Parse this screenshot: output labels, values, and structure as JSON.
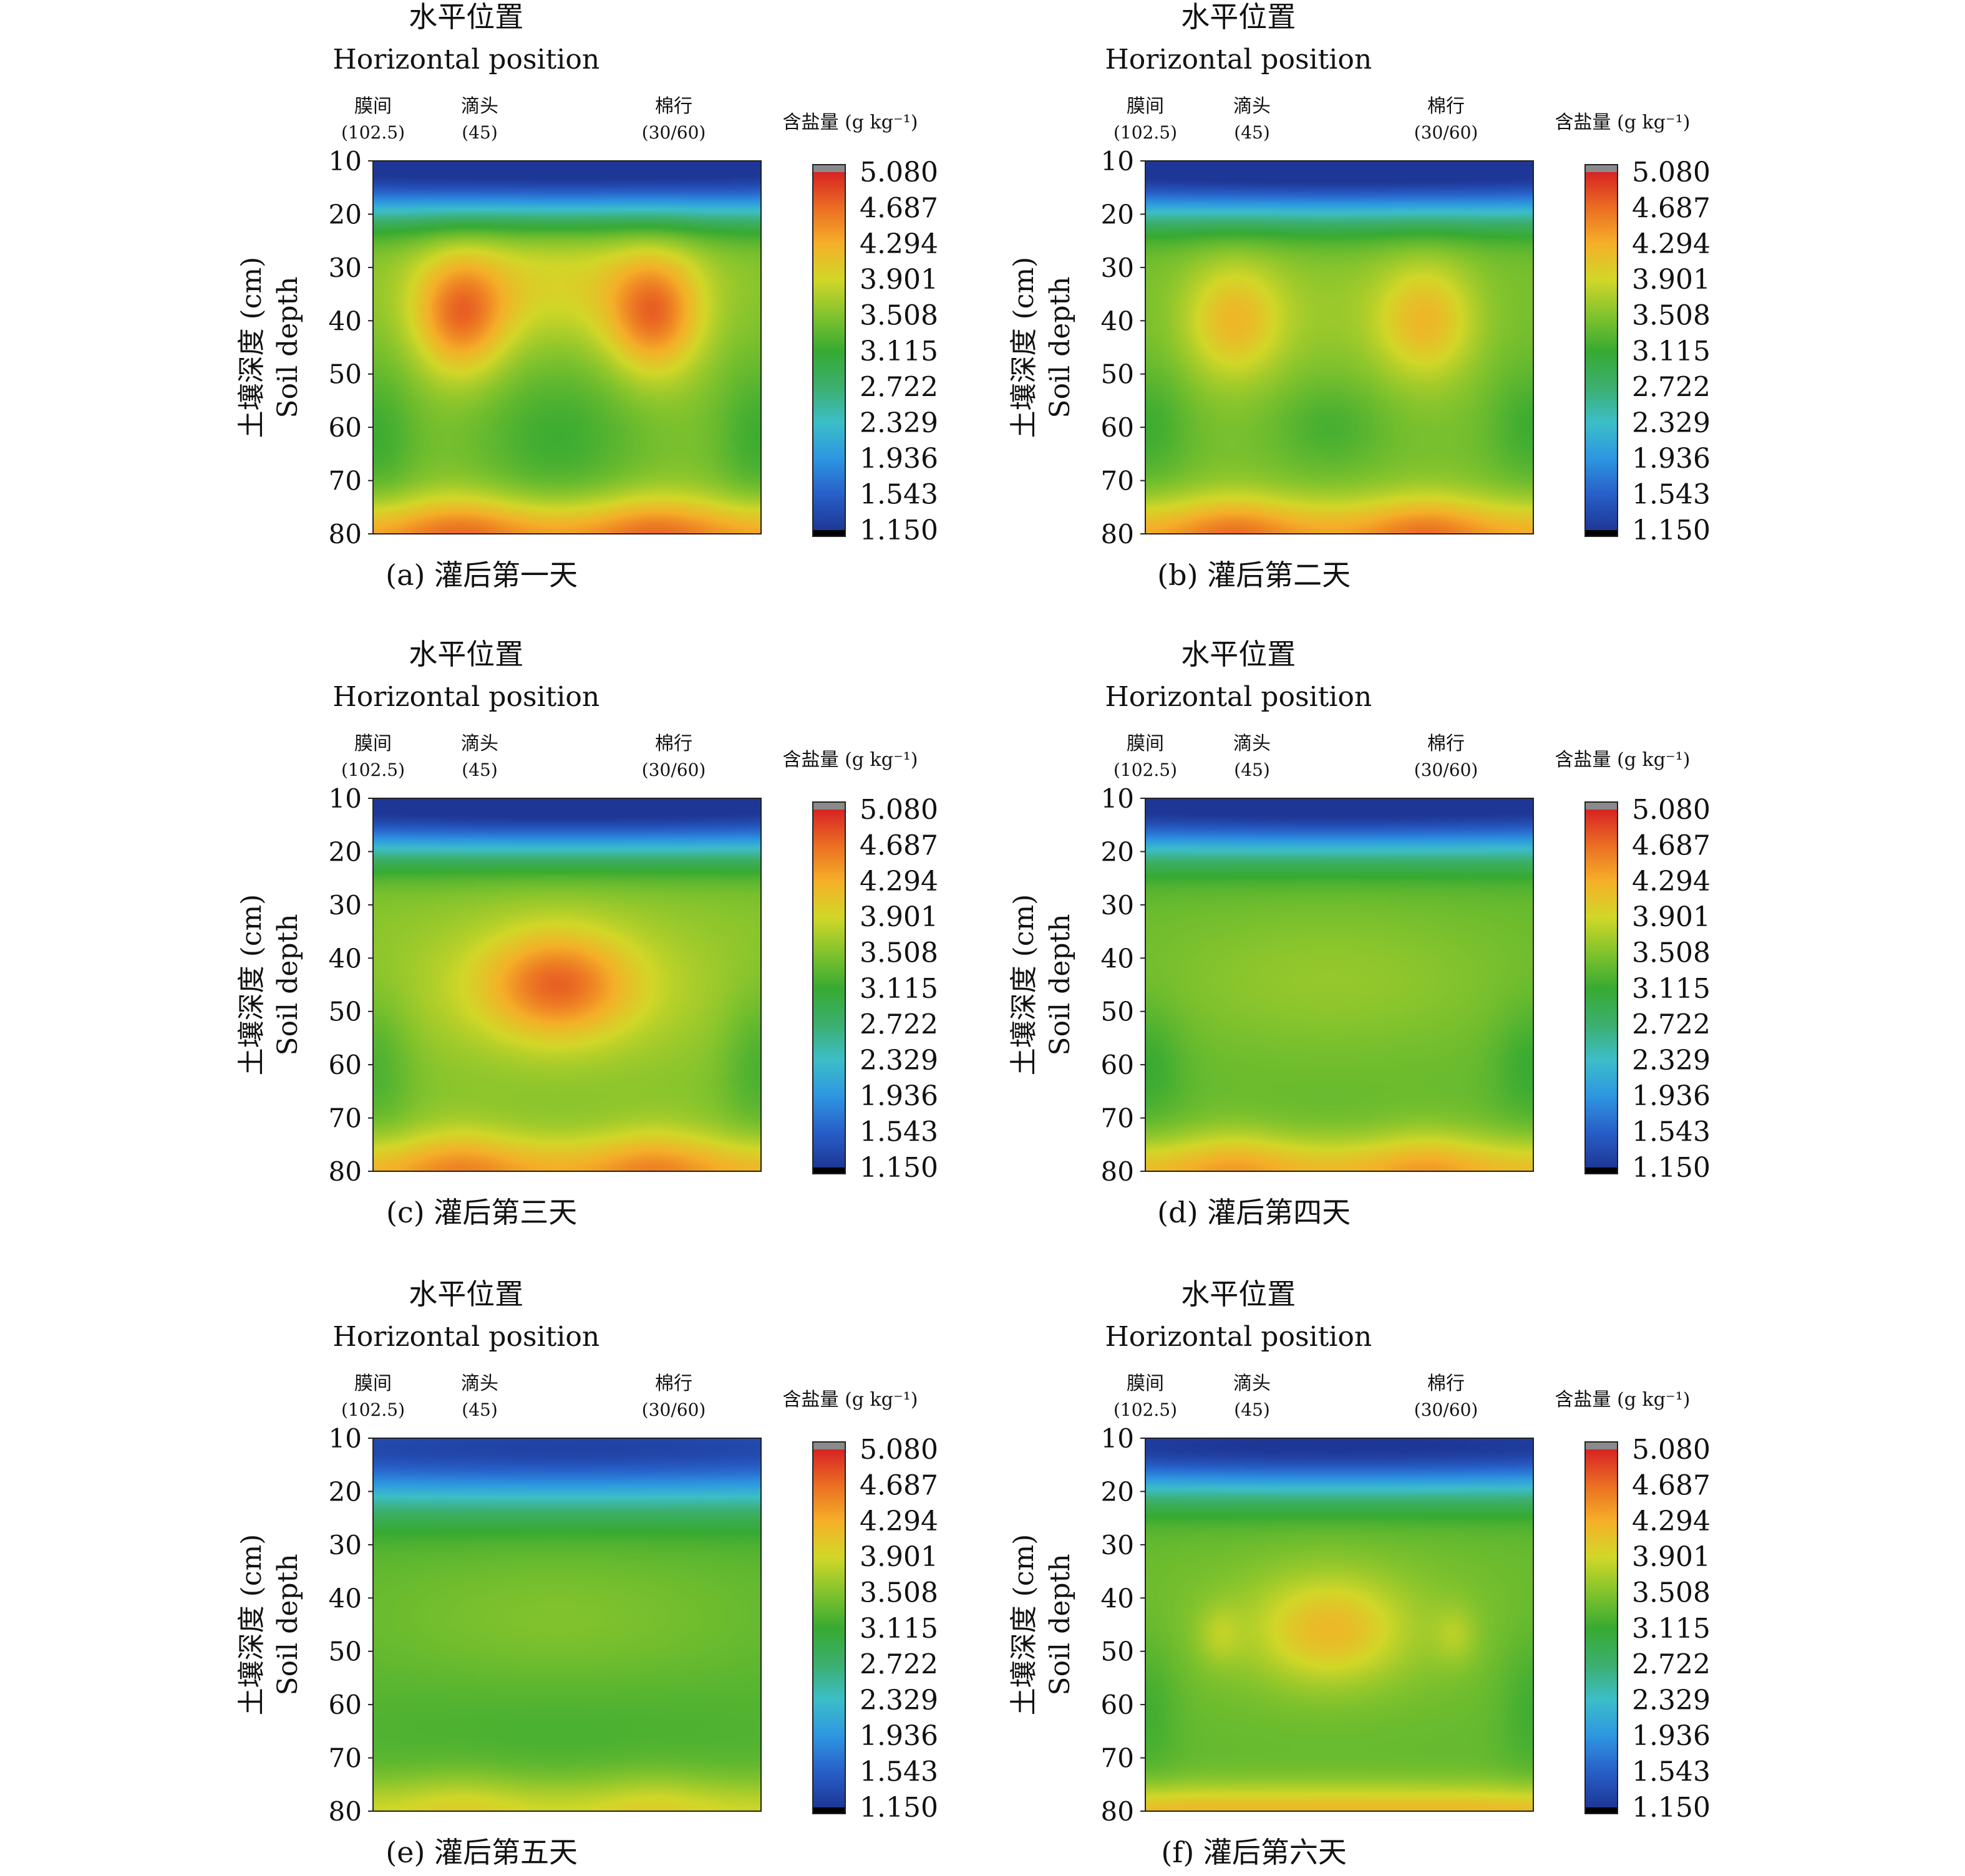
{
  "chart_data": [
    {
      "type": "heatmap",
      "panel_id": "a",
      "caption": "(a) 灌后第一天",
      "title_cn": "水平位置",
      "title_en": "Horizontal position",
      "ylabel_cn": "土壤深度 (cm)",
      "ylabel_en": "Soil depth",
      "top_labels": [
        {
          "name": "膜间",
          "value": "(102.5)"
        },
        {
          "name": "滴头",
          "value": "(45)"
        },
        {
          "name": "棉行",
          "value": "(30/60)"
        }
      ],
      "y_ticks": [
        "10",
        "20",
        "30",
        "40",
        "50",
        "60",
        "70",
        "80"
      ],
      "ylim": [
        10,
        80
      ],
      "colorbar": {
        "title": "含盐量 (g kg⁻¹)",
        "ticks": [
          "5.080",
          "4.687",
          "4.294",
          "3.901",
          "3.508",
          "3.115",
          "2.722",
          "2.329",
          "1.936",
          "1.543",
          "1.150"
        ],
        "range": [
          1.15,
          5.08
        ]
      },
      "field": {
        "base": 3.5,
        "features": [
          {
            "x": 0.5,
            "d": 10,
            "a": -2.2,
            "sx": 2.0,
            "sd": 6
          },
          {
            "x": 0.5,
            "d": 17,
            "a": -0.6,
            "sx": 2.0,
            "sd": 5
          },
          {
            "x": 0.225,
            "d": 39,
            "a": 1.05,
            "sx": 0.085,
            "sd": 8
          },
          {
            "x": 0.725,
            "d": 39,
            "a": 1.05,
            "sx": 0.085,
            "sd": 8
          },
          {
            "x": 0.475,
            "d": 33,
            "a": 0.45,
            "sx": 0.25,
            "sd": 8
          },
          {
            "x": 0.475,
            "d": 62,
            "a": -0.35,
            "sx": 0.15,
            "sd": 10
          },
          {
            "x": 0.0,
            "d": 62,
            "a": -0.35,
            "sx": 0.08,
            "sd": 10
          },
          {
            "x": 1.0,
            "d": 62,
            "a": -0.35,
            "sx": 0.08,
            "sd": 10
          },
          {
            "x": 0.5,
            "d": 81,
            "a": 0.95,
            "sx": 2.0,
            "sd": 5
          },
          {
            "x": 0.225,
            "d": 80,
            "a": 0.3,
            "sx": 0.1,
            "sd": 6
          },
          {
            "x": 0.725,
            "d": 80,
            "a": 0.3,
            "sx": 0.1,
            "sd": 6
          }
        ]
      }
    },
    {
      "type": "heatmap",
      "panel_id": "b",
      "caption": "(b) 灌后第二天",
      "title_cn": "水平位置",
      "title_en": "Horizontal position",
      "ylabel_cn": "土壤深度 (cm)",
      "ylabel_en": "Soil depth",
      "top_labels": [
        {
          "name": "膜间",
          "value": "(102.5)"
        },
        {
          "name": "滴头",
          "value": "(45)"
        },
        {
          "name": "棉行",
          "value": "(30/60)"
        }
      ],
      "y_ticks": [
        "10",
        "20",
        "30",
        "40",
        "50",
        "60",
        "70",
        "80"
      ],
      "ylim": [
        10,
        80
      ],
      "colorbar": {
        "title": "含盐量 (g kg⁻¹)",
        "ticks": [
          "5.080",
          "4.687",
          "4.294",
          "3.901",
          "3.508",
          "3.115",
          "2.722",
          "2.329",
          "1.936",
          "1.543",
          "1.150"
        ],
        "range": [
          1.15,
          5.08
        ]
      },
      "field": {
        "base": 3.45,
        "features": [
          {
            "x": 0.5,
            "d": 10,
            "a": -2.2,
            "sx": 2.0,
            "sd": 6
          },
          {
            "x": 0.5,
            "d": 17,
            "a": -0.6,
            "sx": 2.0,
            "sd": 5
          },
          {
            "x": 0.225,
            "d": 40,
            "a": 0.7,
            "sx": 0.09,
            "sd": 8
          },
          {
            "x": 0.725,
            "d": 40,
            "a": 0.7,
            "sx": 0.09,
            "sd": 8
          },
          {
            "x": 0.475,
            "d": 38,
            "a": 0.15,
            "sx": 0.2,
            "sd": 8
          },
          {
            "x": 0.475,
            "d": 60,
            "a": -0.25,
            "sx": 0.1,
            "sd": 6
          },
          {
            "x": 0.0,
            "d": 60,
            "a": -0.3,
            "sx": 0.08,
            "sd": 8
          },
          {
            "x": 1.0,
            "d": 60,
            "a": -0.3,
            "sx": 0.08,
            "sd": 8
          },
          {
            "x": 0.5,
            "d": 81,
            "a": 0.9,
            "sx": 2.0,
            "sd": 5
          },
          {
            "x": 0.225,
            "d": 80,
            "a": 0.35,
            "sx": 0.1,
            "sd": 6
          },
          {
            "x": 0.725,
            "d": 80,
            "a": 0.35,
            "sx": 0.1,
            "sd": 6
          }
        ]
      }
    },
    {
      "type": "heatmap",
      "panel_id": "c",
      "caption": "(c) 灌后第三天",
      "title_cn": "水平位置",
      "title_en": "Horizontal position",
      "ylabel_cn": "土壤深度 (cm)",
      "ylabel_en": "Soil depth",
      "top_labels": [
        {
          "name": "膜间",
          "value": "(102.5)"
        },
        {
          "name": "滴头",
          "value": "(45)"
        },
        {
          "name": "棉行",
          "value": "(30/60)"
        }
      ],
      "y_ticks": [
        "10",
        "20",
        "30",
        "40",
        "50",
        "60",
        "70",
        "80"
      ],
      "ylim": [
        10,
        80
      ],
      "colorbar": {
        "title": "含盐量 (g kg⁻¹)",
        "ticks": [
          "5.080",
          "4.687",
          "4.294",
          "3.901",
          "3.508",
          "3.115",
          "2.722",
          "2.329",
          "1.936",
          "1.543",
          "1.150"
        ],
        "range": [
          1.15,
          5.08
        ]
      },
      "field": {
        "base": 3.5,
        "features": [
          {
            "x": 0.5,
            "d": 10,
            "a": -2.2,
            "sx": 2.0,
            "sd": 6
          },
          {
            "x": 0.5,
            "d": 17,
            "a": -0.6,
            "sx": 2.0,
            "sd": 5
          },
          {
            "x": 0.475,
            "d": 45,
            "a": 0.9,
            "sx": 0.13,
            "sd": 7
          },
          {
            "x": 0.475,
            "d": 45,
            "a": 0.35,
            "sx": 0.32,
            "sd": 10
          },
          {
            "x": 0.0,
            "d": 60,
            "a": -0.3,
            "sx": 0.07,
            "sd": 10
          },
          {
            "x": 1.0,
            "d": 60,
            "a": -0.3,
            "sx": 0.07,
            "sd": 10
          },
          {
            "x": 0.5,
            "d": 81,
            "a": 0.8,
            "sx": 2.0,
            "sd": 5
          },
          {
            "x": 0.225,
            "d": 79,
            "a": 0.3,
            "sx": 0.1,
            "sd": 6
          },
          {
            "x": 0.725,
            "d": 79,
            "a": 0.3,
            "sx": 0.1,
            "sd": 6
          }
        ]
      }
    },
    {
      "type": "heatmap",
      "panel_id": "d",
      "caption": "(d) 灌后第四天",
      "title_cn": "水平位置",
      "title_en": "Horizontal position",
      "ylabel_cn": "土壤深度 (cm)",
      "ylabel_en": "Soil depth",
      "top_labels": [
        {
          "name": "膜间",
          "value": "(102.5)"
        },
        {
          "name": "滴头",
          "value": "(45)"
        },
        {
          "name": "棉行",
          "value": "(30/60)"
        }
      ],
      "y_ticks": [
        "10",
        "20",
        "30",
        "40",
        "50",
        "60",
        "70",
        "80"
      ],
      "ylim": [
        10,
        80
      ],
      "colorbar": {
        "title": "含盐量 (g kg⁻¹)",
        "ticks": [
          "5.080",
          "4.687",
          "4.294",
          "3.901",
          "3.508",
          "3.115",
          "2.722",
          "2.329",
          "1.936",
          "1.543",
          "1.150"
        ],
        "range": [
          1.15,
          5.08
        ]
      },
      "field": {
        "base": 3.35,
        "features": [
          {
            "x": 0.5,
            "d": 10,
            "a": -2.1,
            "sx": 2.0,
            "sd": 6
          },
          {
            "x": 0.5,
            "d": 17,
            "a": -0.5,
            "sx": 2.0,
            "sd": 5
          },
          {
            "x": 0.475,
            "d": 44,
            "a": 0.25,
            "sx": 0.35,
            "sd": 10
          },
          {
            "x": 0.0,
            "d": 60,
            "a": -0.25,
            "sx": 0.07,
            "sd": 8
          },
          {
            "x": 1.0,
            "d": 60,
            "a": -0.25,
            "sx": 0.07,
            "sd": 8
          },
          {
            "x": 0.5,
            "d": 81,
            "a": 0.85,
            "sx": 2.0,
            "sd": 5
          },
          {
            "x": 0.225,
            "d": 79,
            "a": 0.25,
            "sx": 0.1,
            "sd": 6
          },
          {
            "x": 0.725,
            "d": 79,
            "a": 0.25,
            "sx": 0.1,
            "sd": 6
          }
        ]
      }
    },
    {
      "type": "heatmap",
      "panel_id": "e",
      "caption": "(e) 灌后第五天",
      "title_cn": "水平位置",
      "title_en": "Horizontal position",
      "ylabel_cn": "土壤深度 (cm)",
      "ylabel_en": "Soil depth",
      "top_labels": [
        {
          "name": "膜间",
          "value": "(102.5)"
        },
        {
          "name": "滴头",
          "value": "(45)"
        },
        {
          "name": "棉行",
          "value": "(30/60)"
        }
      ],
      "y_ticks": [
        "10",
        "20",
        "30",
        "40",
        "50",
        "60",
        "70",
        "80"
      ],
      "ylim": [
        10,
        80
      ],
      "colorbar": {
        "title": "含盐量 (g kg⁻¹)",
        "ticks": [
          "5.080",
          "4.687",
          "4.294",
          "3.901",
          "3.508",
          "3.115",
          "2.722",
          "2.329",
          "1.936",
          "1.543",
          "1.150"
        ],
        "range": [
          1.15,
          5.08
        ]
      },
      "field": {
        "base": 3.3,
        "features": [
          {
            "x": 0.5,
            "d": 10,
            "a": -1.8,
            "sx": 2.0,
            "sd": 7
          },
          {
            "x": 0.5,
            "d": 18,
            "a": -0.5,
            "sx": 2.0,
            "sd": 6
          },
          {
            "x": 0.475,
            "d": 44,
            "a": 0.2,
            "sx": 0.35,
            "sd": 9
          },
          {
            "x": 0.475,
            "d": 65,
            "a": -0.1,
            "sx": 0.5,
            "sd": 8
          },
          {
            "x": 0.5,
            "d": 81,
            "a": 0.6,
            "sx": 2.0,
            "sd": 5
          },
          {
            "x": 0.225,
            "d": 80,
            "a": 0.15,
            "sx": 0.1,
            "sd": 6
          },
          {
            "x": 0.725,
            "d": 80,
            "a": 0.15,
            "sx": 0.1,
            "sd": 6
          }
        ]
      }
    },
    {
      "type": "heatmap",
      "panel_id": "f",
      "caption": "(f) 灌后第六天",
      "title_cn": "水平位置",
      "title_en": "Horizontal position",
      "ylabel_cn": "土壤深度 (cm)",
      "ylabel_en": "Soil depth",
      "top_labels": [
        {
          "name": "膜间",
          "value": "(102.5)"
        },
        {
          "name": "滴头",
          "value": "(45)"
        },
        {
          "name": "棉行",
          "value": "(30/60)"
        }
      ],
      "y_ticks": [
        "10",
        "20",
        "30",
        "40",
        "50",
        "60",
        "70",
        "80"
      ],
      "ylim": [
        10,
        80
      ],
      "colorbar": {
        "title": "含盐量 (g kg⁻¹)",
        "ticks": [
          "5.080",
          "4.687",
          "4.294",
          "3.901",
          "3.508",
          "3.115",
          "2.722",
          "2.329",
          "1.936",
          "1.543",
          "1.150"
        ],
        "range": [
          1.15,
          5.08
        ]
      },
      "field": {
        "base": 3.35,
        "features": [
          {
            "x": 0.5,
            "d": 10,
            "a": -2.0,
            "sx": 2.0,
            "sd": 6
          },
          {
            "x": 0.5,
            "d": 17,
            "a": -0.5,
            "sx": 2.0,
            "sd": 5
          },
          {
            "x": 0.475,
            "d": 46,
            "a": 0.6,
            "sx": 0.13,
            "sd": 7
          },
          {
            "x": 0.475,
            "d": 45,
            "a": 0.25,
            "sx": 0.32,
            "sd": 10
          },
          {
            "x": 0.19,
            "d": 47,
            "a": 0.25,
            "sx": 0.04,
            "sd": 4
          },
          {
            "x": 0.8,
            "d": 47,
            "a": 0.25,
            "sx": 0.04,
            "sd": 4
          },
          {
            "x": 0.0,
            "d": 60,
            "a": -0.2,
            "sx": 0.06,
            "sd": 10
          },
          {
            "x": 1.0,
            "d": 60,
            "a": -0.2,
            "sx": 0.06,
            "sd": 10
          },
          {
            "x": 0.5,
            "d": 81,
            "a": 0.9,
            "sx": 2.0,
            "sd": 4
          }
        ]
      }
    }
  ]
}
